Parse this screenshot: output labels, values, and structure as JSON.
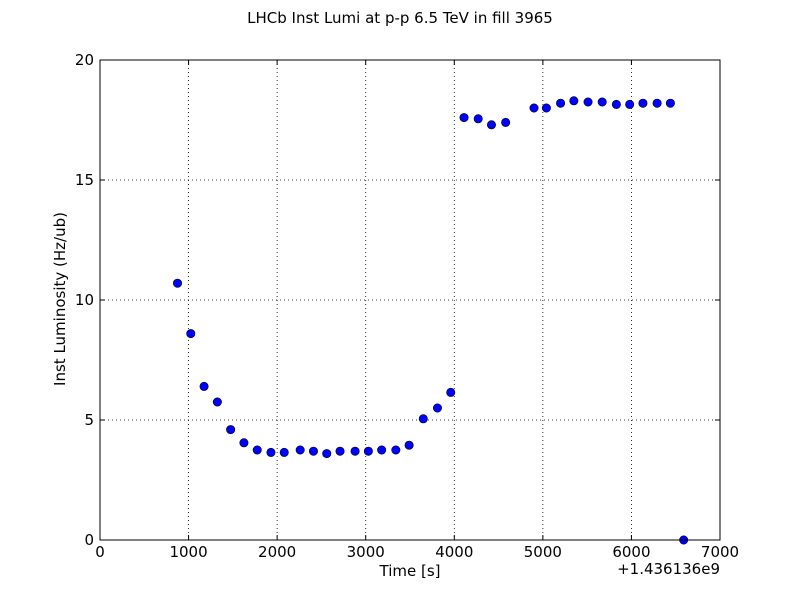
{
  "chart_data": {
    "type": "scatter",
    "title": "LHCb Inst Lumi at p-p 6.5 TeV in fill 3965",
    "xlabel": "Time [s]",
    "ylabel": "Inst Luminosity (Hz/ub)",
    "x_offset_label": "+1.436136e9",
    "xlim": [
      0,
      7000
    ],
    "ylim": [
      0,
      20
    ],
    "x_ticks": [
      0,
      1000,
      2000,
      3000,
      4000,
      5000,
      6000,
      7000
    ],
    "y_ticks": [
      0,
      5,
      10,
      15,
      20
    ],
    "x_tick_labels": [
      "0",
      "1000",
      "2000",
      "3000",
      "4000",
      "5000",
      "6000",
      "7000"
    ],
    "y_tick_labels": [
      "0",
      "5",
      "10",
      "15",
      "20"
    ],
    "grid": true,
    "marker_color": "#0000ff",
    "series": [
      {
        "x": [
          875,
          1025,
          1175,
          1325,
          1475,
          1625,
          1775,
          1930,
          2080,
          2260,
          2410,
          2560,
          2710,
          2880,
          3030,
          3180,
          3340,
          3490,
          3650,
          3810,
          3960,
          4110,
          4270,
          4420,
          4580,
          4900,
          5040,
          5200,
          5350,
          5510,
          5670,
          5830,
          5980,
          6130,
          6290,
          6440,
          6590
        ],
        "y": [
          10.7,
          8.6,
          6.4,
          5.75,
          4.6,
          4.05,
          3.75,
          3.65,
          3.65,
          3.75,
          3.7,
          3.6,
          3.7,
          3.7,
          3.7,
          3.75,
          3.75,
          3.95,
          5.05,
          5.5,
          6.15,
          17.6,
          17.55,
          17.3,
          17.4,
          18.0,
          18.0,
          18.2,
          18.3,
          18.25,
          18.25,
          18.15,
          18.15,
          18.2,
          18.2,
          18.2,
          0.0
        ]
      }
    ]
  }
}
